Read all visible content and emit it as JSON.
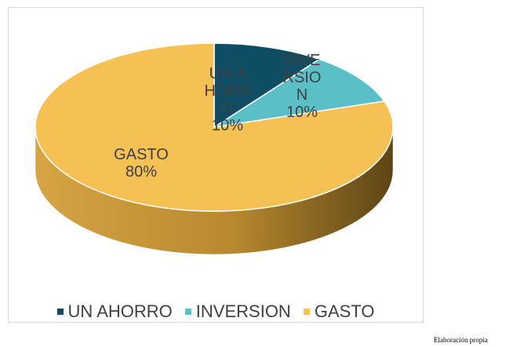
{
  "chart_data": {
    "type": "pie",
    "categories": [
      "UN AHORRO",
      "INVERSION",
      "GASTO"
    ],
    "values": [
      10,
      10,
      80
    ],
    "value_labels": [
      "10%",
      "10%",
      "80%"
    ],
    "colors": [
      "#0e4d64",
      "#5bbfc8",
      "#f6c154"
    ],
    "legend": "bottom"
  },
  "source": "Elaboración propia"
}
